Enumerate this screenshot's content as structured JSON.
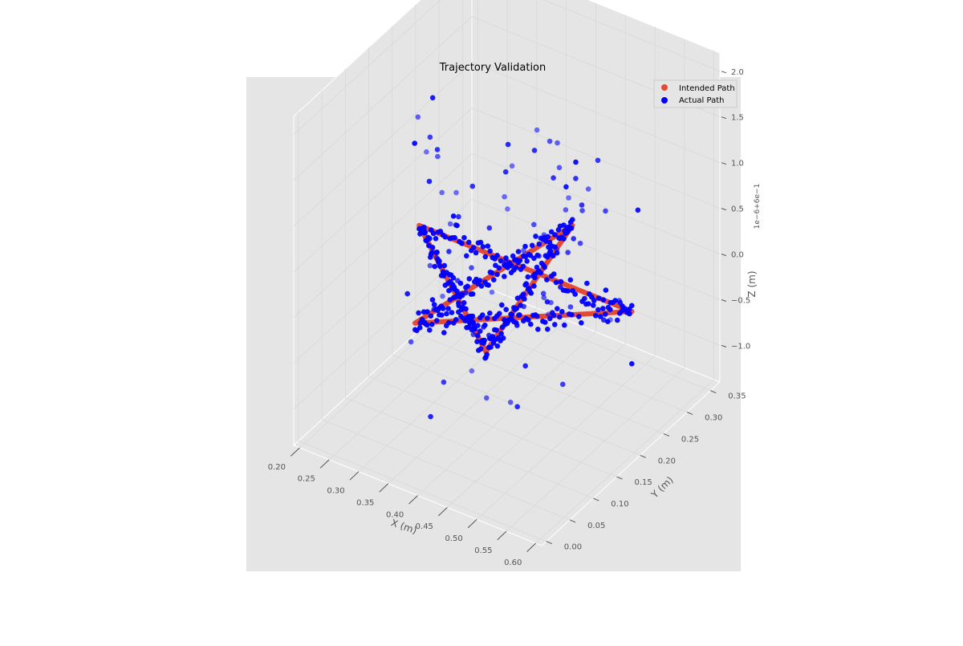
{
  "chart_data": {
    "type": "scatter",
    "projection": "3d",
    "title": "Trajectory Validation",
    "xlabel": "X (m)",
    "ylabel": "Y (m)",
    "zlabel": "Z (m)",
    "z_offset_label": "1e−6+6e−1",
    "x_ticks": [
      "0.20",
      "0.25",
      "0.30",
      "0.35",
      "0.40",
      "0.45",
      "0.50",
      "0.55",
      "0.60"
    ],
    "y_ticks": [
      "0.00",
      "0.05",
      "0.10",
      "0.15",
      "0.20",
      "0.25",
      "0.30",
      "0.35"
    ],
    "z_ticks": [
      "−1.0",
      "−0.5",
      "0.0",
      "0.5",
      "1.0",
      "1.5",
      "2.0"
    ],
    "grid": true,
    "legend_position": "top-right",
    "legend": [
      {
        "label": "Intended Path",
        "color": "#e24a33"
      },
      {
        "label": "Actual Path",
        "color": "#0000ff"
      }
    ],
    "series": [
      {
        "name": "Intended Path",
        "color": "#e24a33",
        "shape": "five-pointed star",
        "vertices_xy": [
          [
            0.4,
            0.32
          ],
          [
            0.34,
            0.06
          ],
          [
            0.58,
            0.22
          ],
          [
            0.22,
            0.22
          ],
          [
            0.46,
            0.06
          ],
          [
            0.4,
            0.32
          ]
        ],
        "z": 0.0
      },
      {
        "name": "Actual Path",
        "color": "#0000ff",
        "shape": "five-pointed star with scatter noise",
        "vertices_xy": [
          [
            0.4,
            0.32
          ],
          [
            0.34,
            0.06
          ],
          [
            0.58,
            0.22
          ],
          [
            0.22,
            0.22
          ],
          [
            0.46,
            0.06
          ],
          [
            0.4,
            0.32
          ]
        ],
        "z_noise_range": [
          -1.0,
          1.8
        ]
      }
    ]
  }
}
